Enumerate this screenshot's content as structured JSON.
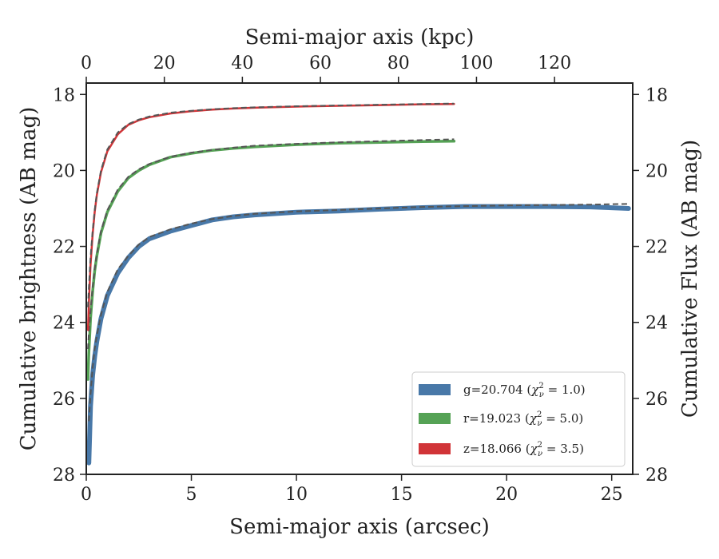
{
  "chart_data": {
    "type": "line",
    "xlabel": "Semi-major axis (arcsec)",
    "ylabel": "Cumulative brightness (AB mag)",
    "ylabel_right": "Cumulative Flux (AB mag)",
    "xlabel_top": "Semi-major axis (kpc)",
    "xlim": [
      0,
      26
    ],
    "ylim": [
      28,
      17.7
    ],
    "y_inverted": true,
    "x_ticks": [
      "0",
      "5",
      "10",
      "15",
      "20",
      "25"
    ],
    "x_tick_values": [
      0,
      5,
      10,
      15,
      20,
      25
    ],
    "y_ticks": [
      "18",
      "20",
      "22",
      "24",
      "26",
      "28"
    ],
    "y_tick_values": [
      18,
      20,
      22,
      24,
      26,
      28
    ],
    "top_ticks": [
      "0",
      "20",
      "40",
      "60",
      "80",
      "100",
      "120"
    ],
    "top_tick_values_kpc": [
      0,
      20,
      40,
      60,
      80,
      100,
      120
    ],
    "kpc_per_arcsec": 5.386,
    "legend_position": "lower-right",
    "grid": false,
    "series": [
      {
        "name": "g=20.704 (χ²_ν = 1.0)",
        "legend_prefix": "g=20.704 (",
        "legend_chi": "χ",
        "legend_sup": "2",
        "legend_sub": "ν",
        "legend_suffix": " = 1.0)",
        "color": "#4878a8",
        "band_width": 6,
        "x": [
          0.12,
          0.2,
          0.3,
          0.4,
          0.5,
          0.7,
          1.0,
          1.5,
          2.0,
          2.5,
          3.0,
          4.0,
          5.0,
          6.0,
          7.0,
          8.0,
          10.0,
          12.0,
          14.0,
          16.0,
          18.0,
          20.0,
          22.0,
          24.0,
          25.8
        ],
        "y": [
          27.7,
          26.2,
          25.4,
          24.9,
          24.5,
          23.9,
          23.3,
          22.7,
          22.3,
          22.0,
          21.8,
          21.6,
          21.45,
          21.3,
          21.22,
          21.17,
          21.1,
          21.07,
          21.02,
          20.98,
          20.95,
          20.95,
          20.95,
          20.96,
          21.0
        ],
        "model": [
          26.6,
          25.9,
          25.2,
          24.7,
          24.35,
          23.8,
          23.2,
          22.6,
          22.25,
          21.95,
          21.75,
          21.55,
          21.4,
          21.28,
          21.2,
          21.14,
          21.08,
          21.04,
          21.0,
          20.96,
          20.94,
          20.92,
          20.91,
          20.9,
          20.88
        ]
      },
      {
        "name": "r=19.023 (χ²_ν = 5.0)",
        "legend_prefix": "r=19.023 (",
        "legend_chi": "χ",
        "legend_sup": "2",
        "legend_sub": "ν",
        "legend_suffix": " = 5.0)",
        "color": "#55a255",
        "band_width": 3.5,
        "x": [
          0.08,
          0.12,
          0.2,
          0.3,
          0.4,
          0.5,
          0.7,
          1.0,
          1.5,
          2.0,
          2.5,
          3.0,
          4.0,
          5.0,
          6.0,
          7.0,
          8.0,
          10.0,
          12.0,
          14.0,
          16.0,
          17.5
        ],
        "y": [
          25.5,
          24.8,
          23.9,
          23.2,
          22.65,
          22.25,
          21.65,
          21.1,
          20.55,
          20.2,
          20.0,
          19.85,
          19.65,
          19.55,
          19.47,
          19.42,
          19.38,
          19.32,
          19.28,
          19.26,
          19.24,
          19.23
        ],
        "model": [
          24.7,
          24.3,
          23.7,
          23.1,
          22.6,
          22.2,
          21.6,
          21.05,
          20.5,
          20.17,
          19.97,
          19.83,
          19.64,
          19.53,
          19.46,
          19.4,
          19.35,
          19.3,
          19.26,
          19.23,
          19.2,
          19.18
        ]
      },
      {
        "name": "z=18.066 (χ²_ν = 3.5)",
        "legend_prefix": "z=18.066 (",
        "legend_chi": "χ",
        "legend_sup": "2",
        "legend_sub": "ν",
        "legend_suffix": " = 3.5)",
        "color": "#d13438",
        "band_width": 2.5,
        "x": [
          0.08,
          0.12,
          0.2,
          0.3,
          0.4,
          0.5,
          0.7,
          1.0,
          1.5,
          2.0,
          2.5,
          3.0,
          4.0,
          5.0,
          6.0,
          7.0,
          8.0,
          10.0,
          12.0,
          14.0,
          16.0,
          17.5
        ],
        "y": [
          24.2,
          23.5,
          22.5,
          21.7,
          21.1,
          20.65,
          20.05,
          19.5,
          19.05,
          18.8,
          18.68,
          18.6,
          18.5,
          18.44,
          18.4,
          18.37,
          18.35,
          18.32,
          18.3,
          18.28,
          18.26,
          18.25
        ],
        "model": [
          23.6,
          23.1,
          22.3,
          21.6,
          21.05,
          20.6,
          20.0,
          19.45,
          19.0,
          18.78,
          18.66,
          18.58,
          18.48,
          18.43,
          18.39,
          18.36,
          18.34,
          18.31,
          18.29,
          18.27,
          18.25,
          18.24
        ]
      }
    ],
    "model_line_color": "#555555"
  }
}
